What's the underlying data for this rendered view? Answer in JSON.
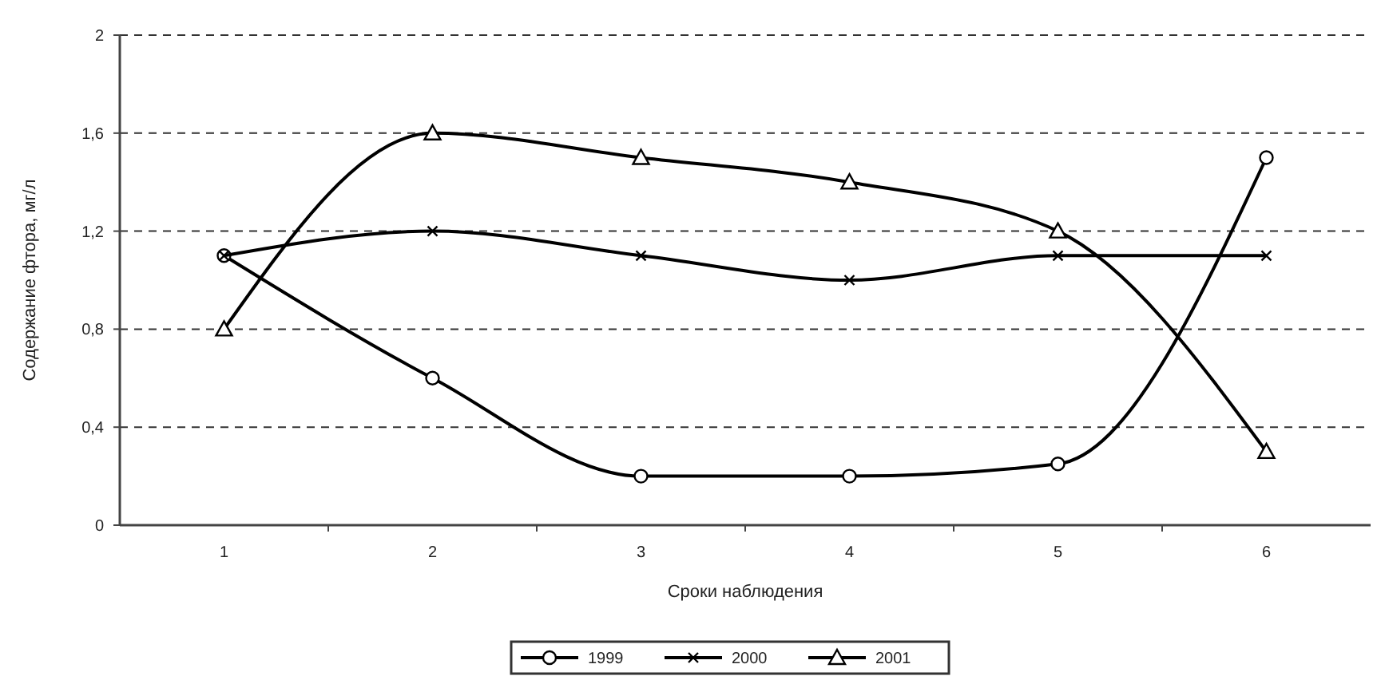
{
  "chart_data": {
    "type": "line",
    "xlabel": "Сроки наблюдения",
    "ylabel": "Содержание фтора, мг/л",
    "categories": [
      "1",
      "2",
      "3",
      "4",
      "5",
      "6"
    ],
    "series": [
      {
        "name": "1999",
        "color": "#000000",
        "marker": "circle",
        "values": [
          1.1,
          0.6,
          0.2,
          0.2,
          0.25,
          1.5
        ]
      },
      {
        "name": "2000",
        "color": "#000000",
        "marker": "cross",
        "values": [
          1.1,
          1.2,
          1.1,
          1.0,
          1.1,
          1.1
        ]
      },
      {
        "name": "2001",
        "color": "#000000",
        "marker": "triangle",
        "values": [
          0.8,
          1.6,
          1.5,
          1.4,
          1.2,
          0.3
        ]
      }
    ],
    "ylim": [
      0,
      2
    ],
    "yticks": [
      0,
      {
        "value": 0.4,
        "label": "0,4"
      },
      {
        "value": 0.8,
        "label": "0,8"
      },
      {
        "value": 1.2,
        "label": "1,2"
      },
      {
        "value": 1.6,
        "label": "1,6"
      },
      2
    ],
    "grid": "y",
    "legend": "bottom",
    "line_style": "solid"
  }
}
